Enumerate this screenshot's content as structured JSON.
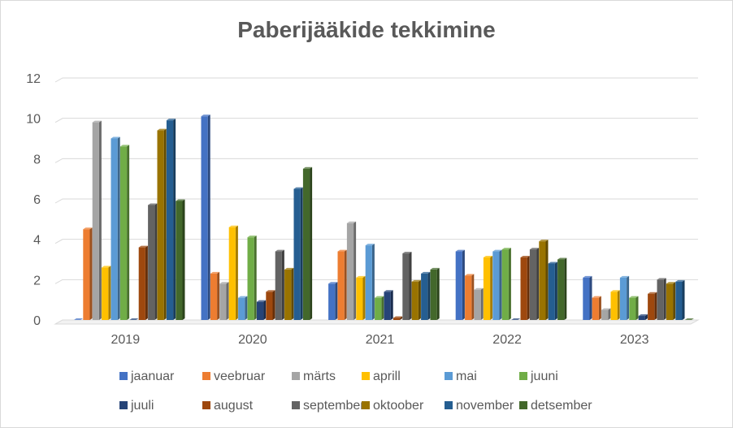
{
  "chart_data": {
    "type": "bar",
    "title": "Paberijääkide tekkimine",
    "xlabel": "",
    "ylabel": "",
    "categories": [
      "2019",
      "2020",
      "2021",
      "2022",
      "2023"
    ],
    "ylim": [
      0,
      12
    ],
    "yticks": [
      0,
      2,
      4,
      6,
      8,
      10,
      12
    ],
    "grid": true,
    "legend_position": "bottom",
    "series": [
      {
        "name": "jaanuar",
        "color": "#4472C4",
        "values": [
          0,
          10.1,
          1.8,
          3.4,
          2.1
        ]
      },
      {
        "name": "veebruar",
        "color": "#ED7D31",
        "values": [
          4.5,
          2.3,
          3.4,
          2.2,
          1.1
        ]
      },
      {
        "name": "märts",
        "color": "#A5A5A5",
        "values": [
          9.8,
          1.8,
          4.8,
          1.5,
          0.5
        ]
      },
      {
        "name": "aprill",
        "color": "#FFC000",
        "values": [
          2.6,
          4.6,
          2.1,
          3.1,
          1.4
        ]
      },
      {
        "name": "mai",
        "color": "#5B9BD5",
        "values": [
          9.0,
          1.1,
          3.7,
          3.4,
          2.1
        ]
      },
      {
        "name": "juuni",
        "color": "#70AD47",
        "values": [
          8.6,
          4.1,
          1.1,
          3.5,
          1.1
        ]
      },
      {
        "name": "juuli",
        "color": "#264478",
        "values": [
          0,
          0.9,
          1.4,
          0,
          0.2
        ]
      },
      {
        "name": "august",
        "color": "#9E480E",
        "values": [
          3.6,
          1.4,
          0.1,
          3.1,
          1.3
        ]
      },
      {
        "name": "september",
        "color": "#636363",
        "values": [
          5.7,
          3.4,
          3.3,
          3.5,
          2.0
        ]
      },
      {
        "name": "oktoober",
        "color": "#997300",
        "values": [
          9.4,
          2.5,
          1.9,
          3.9,
          1.8
        ]
      },
      {
        "name": "november",
        "color": "#255E91",
        "values": [
          9.9,
          6.5,
          2.3,
          2.8,
          1.9
        ]
      },
      {
        "name": "detsember",
        "color": "#43682B",
        "values": [
          5.9,
          7.5,
          2.5,
          3.0,
          0
        ]
      }
    ]
  }
}
